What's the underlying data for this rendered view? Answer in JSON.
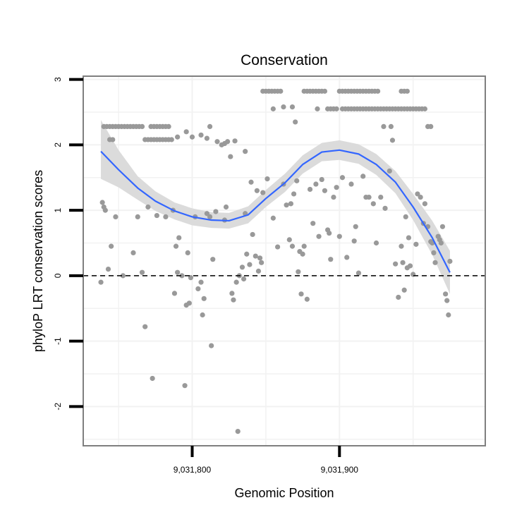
{
  "chart_data": {
    "type": "scatter",
    "title": "Conservation",
    "xlabel": "Genomic Position",
    "ylabel": "phyloP LRT conservation scores",
    "xlim": [
      9031726,
      9031999
    ],
    "ylim": [
      -2.6,
      3.05
    ],
    "x_ticks": [
      {
        "value": 9031800,
        "label": "9,031,800"
      },
      {
        "value": 9031900,
        "label": "9,031,900"
      }
    ],
    "y_ticks": [
      {
        "value": 3,
        "label": "3"
      },
      {
        "value": 2,
        "label": "2"
      },
      {
        "value": 1,
        "label": "1"
      },
      {
        "value": 0,
        "label": "0"
      },
      {
        "value": -1,
        "label": "-1"
      },
      {
        "value": -2,
        "label": "-2"
      }
    ],
    "reference_line": {
      "y": 0,
      "style": "dashed"
    },
    "colors": {
      "points": "#999999",
      "smooth": "#3366ff",
      "ribbon": "#d9d9d9",
      "grid": "#f2f2f2",
      "frame": "#7f7f7f",
      "refline": "#000000"
    },
    "points": [
      [
        9031738,
        -0.1
      ],
      [
        9031739,
        1.12
      ],
      [
        9031740,
        1.05
      ],
      [
        9031741,
        1.0
      ],
      [
        9031743,
        0.1
      ],
      [
        9031745,
        0.45
      ],
      [
        9031748,
        0.9
      ],
      [
        9031753,
        0.0
      ],
      [
        9031760,
        0.35
      ],
      [
        9031763,
        0.9
      ],
      [
        9031766,
        0.05
      ],
      [
        9031768,
        -0.78
      ],
      [
        9031770,
        1.05
      ],
      [
        9031773,
        -1.57
      ],
      [
        9031776,
        0.92
      ],
      [
        9031782,
        0.9
      ],
      [
        9031787,
        1.0
      ],
      [
        9031788,
        -0.27
      ],
      [
        9031789,
        0.45
      ],
      [
        9031790,
        0.05
      ],
      [
        9031791,
        0.58
      ],
      [
        9031793,
        0.0
      ],
      [
        9031795,
        -1.68
      ],
      [
        9031796,
        -0.45
      ],
      [
        9031797,
        0.35
      ],
      [
        9031798,
        -0.42
      ],
      [
        9031799,
        -0.03
      ],
      [
        9031802,
        0.9
      ],
      [
        9031804,
        -0.2
      ],
      [
        9031806,
        -0.1
      ],
      [
        9031807,
        -0.6
      ],
      [
        9031808,
        -0.35
      ],
      [
        9031810,
        0.95
      ],
      [
        9031812,
        0.9
      ],
      [
        9031813,
        -1.07
      ],
      [
        9031814,
        0.25
      ],
      [
        9031816,
        0.98
      ],
      [
        9031822,
        0.85
      ],
      [
        9031823,
        1.05
      ],
      [
        9031827,
        -0.27
      ],
      [
        9031828,
        -0.37
      ],
      [
        9031830,
        -0.1
      ],
      [
        9031831,
        -2.38
      ],
      [
        9031832,
        0.0
      ],
      [
        9031834,
        0.13
      ],
      [
        9031835,
        -0.05
      ],
      [
        9031836,
        0.95
      ],
      [
        9031837,
        0.33
      ],
      [
        9031839,
        0.17
      ],
      [
        9031840,
        1.43
      ],
      [
        9031841,
        0.63
      ],
      [
        9031843,
        0.3
      ],
      [
        9031844,
        1.3
      ],
      [
        9031845,
        0.07
      ],
      [
        9031846,
        0.27
      ],
      [
        9031847,
        0.2
      ],
      [
        9031848,
        1.27
      ],
      [
        9031851,
        1.48
      ],
      [
        9031855,
        0.88
      ],
      [
        9031858,
        0.44
      ],
      [
        9031862,
        1.4
      ],
      [
        9031864,
        1.08
      ],
      [
        9031866,
        0.55
      ],
      [
        9031867,
        1.1
      ],
      [
        9031868,
        0.45
      ],
      [
        9031869,
        1.25
      ],
      [
        9031871,
        1.45
      ],
      [
        9031872,
        0.06
      ],
      [
        9031873,
        0.37
      ],
      [
        9031874,
        -0.28
      ],
      [
        9031875,
        0.33
      ],
      [
        9031876,
        0.45
      ],
      [
        9031878,
        -0.36
      ],
      [
        9031880,
        1.32
      ],
      [
        9031882,
        0.8
      ],
      [
        9031884,
        1.4
      ],
      [
        9031886,
        0.6
      ],
      [
        9031888,
        1.47
      ],
      [
        9031890,
        1.3
      ],
      [
        9031892,
        0.7
      ],
      [
        9031893,
        0.65
      ],
      [
        9031894,
        0.25
      ],
      [
        9031896,
        1.2
      ],
      [
        9031898,
        1.35
      ],
      [
        9031900,
        0.6
      ],
      [
        9031902,
        1.5
      ],
      [
        9031905,
        0.28
      ],
      [
        9031908,
        1.4
      ],
      [
        9031910,
        0.53
      ],
      [
        9031911,
        0.75
      ],
      [
        9031913,
        0.04
      ],
      [
        9031916,
        1.52
      ],
      [
        9031918,
        1.2
      ],
      [
        9031920,
        1.2
      ],
      [
        9031923,
        1.1
      ],
      [
        9031925,
        0.5
      ],
      [
        9031928,
        1.2
      ],
      [
        9031931,
        1.03
      ],
      [
        9031934,
        1.6
      ],
      [
        9031938,
        0.18
      ],
      [
        9031940,
        -0.33
      ],
      [
        9031942,
        0.45
      ],
      [
        9031943,
        0.2
      ],
      [
        9031944,
        -0.22
      ],
      [
        9031945,
        0.9
      ],
      [
        9031946,
        0.12
      ],
      [
        9031947,
        0.58
      ],
      [
        9031948,
        0.15
      ],
      [
        9031950,
        0.02
      ],
      [
        9031952,
        0.48
      ],
      [
        9031953,
        1.25
      ],
      [
        9031955,
        1.2
      ],
      [
        9031957,
        0.8
      ],
      [
        9031958,
        1.1
      ],
      [
        9031960,
        0.75
      ],
      [
        9031962,
        0.52
      ],
      [
        9031963,
        0.5
      ],
      [
        9031964,
        0.35
      ],
      [
        9031965,
        0.2
      ],
      [
        9031967,
        0.6
      ],
      [
        9031968,
        0.55
      ],
      [
        9031969,
        0.5
      ],
      [
        9031970,
        0.75
      ],
      [
        9031972,
        -0.28
      ],
      [
        9031973,
        -0.38
      ],
      [
        9031974,
        -0.6
      ],
      [
        9031975,
        0.22
      ],
      [
        9031740,
        2.28
      ],
      [
        9031742,
        2.28
      ],
      [
        9031744,
        2.28
      ],
      [
        9031746,
        2.28
      ],
      [
        9031748,
        2.28
      ],
      [
        9031750,
        2.28
      ],
      [
        9031752,
        2.28
      ],
      [
        9031754,
        2.28
      ],
      [
        9031756,
        2.28
      ],
      [
        9031758,
        2.28
      ],
      [
        9031760,
        2.28
      ],
      [
        9031762,
        2.28
      ],
      [
        9031764,
        2.28
      ],
      [
        9031766,
        2.28
      ],
      [
        9031744,
        2.08
      ],
      [
        9031746,
        2.08
      ],
      [
        9031768,
        2.08
      ],
      [
        9031770,
        2.08
      ],
      [
        9031772,
        2.08
      ],
      [
        9031774,
        2.08
      ],
      [
        9031776,
        2.08
      ],
      [
        9031778,
        2.08
      ],
      [
        9031780,
        2.08
      ],
      [
        9031782,
        2.08
      ],
      [
        9031784,
        2.08
      ],
      [
        9031786,
        2.08
      ],
      [
        9031772,
        2.28
      ],
      [
        9031774,
        2.28
      ],
      [
        9031776,
        2.28
      ],
      [
        9031778,
        2.28
      ],
      [
        9031780,
        2.28
      ],
      [
        9031782,
        2.28
      ],
      [
        9031784,
        2.28
      ],
      [
        9031790,
        2.12
      ],
      [
        9031796,
        2.2
      ],
      [
        9031800,
        2.12
      ],
      [
        9031806,
        2.15
      ],
      [
        9031810,
        2.1
      ],
      [
        9031812,
        2.28
      ],
      [
        9031817,
        2.05
      ],
      [
        9031820,
        2.0
      ],
      [
        9031822,
        2.02
      ],
      [
        9031824,
        2.05
      ],
      [
        9031826,
        1.82
      ],
      [
        9031829,
        2.06
      ],
      [
        9031836,
        1.9
      ],
      [
        9031848,
        2.82
      ],
      [
        9031850,
        2.82
      ],
      [
        9031852,
        2.82
      ],
      [
        9031854,
        2.82
      ],
      [
        9031856,
        2.82
      ],
      [
        9031858,
        2.82
      ],
      [
        9031860,
        2.82
      ],
      [
        9031855,
        2.55
      ],
      [
        9031862,
        2.58
      ],
      [
        9031868,
        2.58
      ],
      [
        9031876,
        2.82
      ],
      [
        9031878,
        2.82
      ],
      [
        9031880,
        2.82
      ],
      [
        9031882,
        2.82
      ],
      [
        9031884,
        2.82
      ],
      [
        9031886,
        2.82
      ],
      [
        9031888,
        2.82
      ],
      [
        9031890,
        2.82
      ],
      [
        9031892,
        2.55
      ],
      [
        9031894,
        2.55
      ],
      [
        9031896,
        2.55
      ],
      [
        9031898,
        2.55
      ],
      [
        9031900,
        2.82
      ],
      [
        9031902,
        2.82
      ],
      [
        9031904,
        2.82
      ],
      [
        9031906,
        2.82
      ],
      [
        9031908,
        2.82
      ],
      [
        9031910,
        2.82
      ],
      [
        9031912,
        2.82
      ],
      [
        9031914,
        2.82
      ],
      [
        9031916,
        2.82
      ],
      [
        9031918,
        2.82
      ],
      [
        9031920,
        2.82
      ],
      [
        9031922,
        2.82
      ],
      [
        9031924,
        2.82
      ],
      [
        9031926,
        2.82
      ],
      [
        9031902,
        2.55
      ],
      [
        9031904,
        2.55
      ],
      [
        9031906,
        2.55
      ],
      [
        9031908,
        2.55
      ],
      [
        9031910,
        2.55
      ],
      [
        9031912,
        2.55
      ],
      [
        9031914,
        2.55
      ],
      [
        9031916,
        2.55
      ],
      [
        9031918,
        2.55
      ],
      [
        9031920,
        2.55
      ],
      [
        9031922,
        2.55
      ],
      [
        9031924,
        2.55
      ],
      [
        9031926,
        2.55
      ],
      [
        9031928,
        2.55
      ],
      [
        9031930,
        2.55
      ],
      [
        9031932,
        2.55
      ],
      [
        9031934,
        2.55
      ],
      [
        9031936,
        2.55
      ],
      [
        9031938,
        2.55
      ],
      [
        9031940,
        2.55
      ],
      [
        9031942,
        2.55
      ],
      [
        9031944,
        2.55
      ],
      [
        9031946,
        2.55
      ],
      [
        9031948,
        2.55
      ],
      [
        9031950,
        2.55
      ],
      [
        9031952,
        2.55
      ],
      [
        9031954,
        2.55
      ],
      [
        9031956,
        2.55
      ],
      [
        9031958,
        2.55
      ],
      [
        9031870,
        2.35
      ],
      [
        9031885,
        2.55
      ],
      [
        9031930,
        2.28
      ],
      [
        9031935,
        2.28
      ],
      [
        9031942,
        2.82
      ],
      [
        9031944,
        2.82
      ],
      [
        9031946,
        2.82
      ],
      [
        9031936,
        2.07
      ],
      [
        9031960,
        2.28
      ],
      [
        9031962,
        2.28
      ]
    ],
    "smooth_curve": [
      {
        "x": 9031738,
        "y": 1.9,
        "lo": 1.48,
        "hi": 2.38
      },
      {
        "x": 9031750,
        "y": 1.62,
        "lo": 1.35,
        "hi": 1.92
      },
      {
        "x": 9031763,
        "y": 1.34,
        "lo": 1.16,
        "hi": 1.52
      },
      {
        "x": 9031775,
        "y": 1.14,
        "lo": 0.99,
        "hi": 1.29
      },
      {
        "x": 9031788,
        "y": 0.99,
        "lo": 0.86,
        "hi": 1.12
      },
      {
        "x": 9031800,
        "y": 0.9,
        "lo": 0.77,
        "hi": 1.03
      },
      {
        "x": 9031813,
        "y": 0.85,
        "lo": 0.73,
        "hi": 0.97
      },
      {
        "x": 9031825,
        "y": 0.84,
        "lo": 0.72,
        "hi": 0.96
      },
      {
        "x": 9031838,
        "y": 0.93,
        "lo": 0.8,
        "hi": 1.06
      },
      {
        "x": 9031850,
        "y": 1.18,
        "lo": 1.05,
        "hi": 1.31
      },
      {
        "x": 9031863,
        "y": 1.42,
        "lo": 1.28,
        "hi": 1.56
      },
      {
        "x": 9031875,
        "y": 1.7,
        "lo": 1.56,
        "hi": 1.84
      },
      {
        "x": 9031888,
        "y": 1.89,
        "lo": 1.75,
        "hi": 2.03
      },
      {
        "x": 9031900,
        "y": 1.92,
        "lo": 1.77,
        "hi": 2.07
      },
      {
        "x": 9031913,
        "y": 1.86,
        "lo": 1.71,
        "hi": 2.01
      },
      {
        "x": 9031925,
        "y": 1.7,
        "lo": 1.54,
        "hi": 1.86
      },
      {
        "x": 9031938,
        "y": 1.43,
        "lo": 1.26,
        "hi": 1.6
      },
      {
        "x": 9031950,
        "y": 1.05,
        "lo": 0.85,
        "hi": 1.25
      },
      {
        "x": 9031963,
        "y": 0.58,
        "lo": 0.32,
        "hi": 0.84
      },
      {
        "x": 9031975,
        "y": 0.05,
        "lo": -0.28,
        "hi": 0.38
      }
    ]
  }
}
